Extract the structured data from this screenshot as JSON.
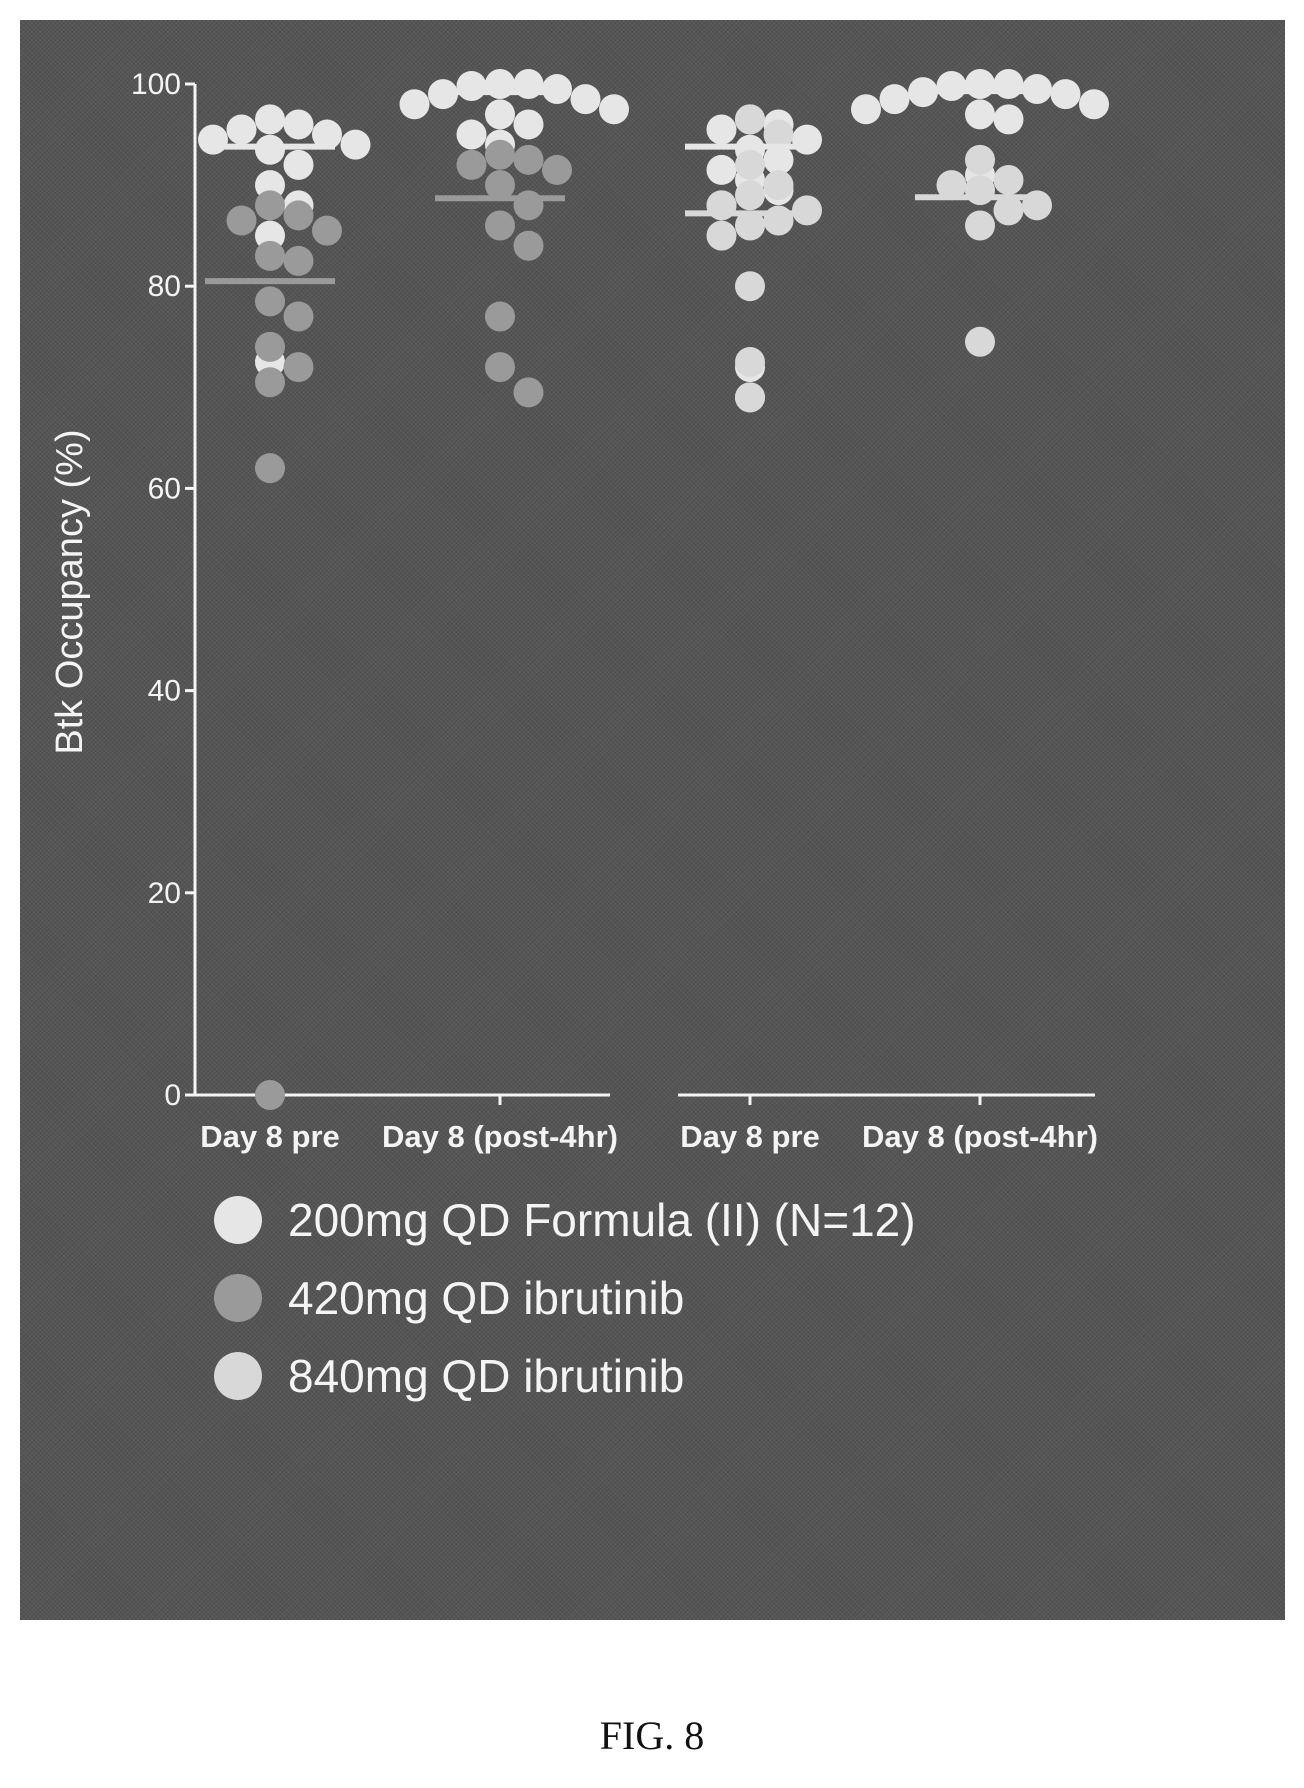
{
  "figure_label": "FIG. 8",
  "chart_data": {
    "type": "scatter",
    "ylabel": "Btk Occupancy (%)",
    "ylim": [
      0,
      100
    ],
    "yticks": [
      0,
      20,
      40,
      60,
      80,
      100
    ],
    "grid": false,
    "legend_position": "bottom",
    "categories": [
      "Day 8 pre",
      "Day 8 (post-4hr)",
      "Day 8 pre",
      "Day 8 (post-4hr)"
    ],
    "series": [
      {
        "name": "200mg QD Formula (II) (N=12)",
        "color": "#e6e6e6",
        "groups": [
          {
            "category_index": 0,
            "values": [
              96.5,
              96,
              95.5,
              95,
              94.5,
              94,
              93.5,
              92,
              90,
              88,
              85,
              72.5
            ],
            "mean": 93.8
          },
          {
            "category_index": 1,
            "values": [
              100,
              100,
              99.8,
              99.5,
              99,
              98.5,
              98,
              97.5,
              97,
              96,
              95,
              94
            ],
            "mean": 99.2
          },
          {
            "category_index": 2,
            "values": [
              96.5,
              96,
              95.5,
              94.5,
              93.5,
              92.5,
              91.5,
              90.5,
              89.5,
              88,
              72,
              69
            ],
            "mean": 93.8
          },
          {
            "category_index": 3,
            "values": [
              100,
              100,
              99.8,
              99.5,
              99.2,
              99,
              98.5,
              98,
              97.5,
              97,
              96.5,
              91
            ],
            "mean": 99.3
          }
        ]
      },
      {
        "name": "420mg QD ibrutinib",
        "color": "#9a9a9a",
        "groups": [
          {
            "category_index": 0,
            "values": [
              88,
              87,
              86.5,
              85.5,
              83,
              82.5,
              78.5,
              77,
              74,
              72,
              70.5,
              62,
              0
            ],
            "mean": 80.5
          },
          {
            "category_index": 1,
            "values": [
              93,
              92.5,
              92,
              91.5,
              90,
              88,
              86,
              84,
              77,
              72,
              69.5
            ],
            "mean": 88.7
          }
        ]
      },
      {
        "name": "840mg QD ibrutinib",
        "color": "#d8d8d8",
        "groups": [
          {
            "category_index": 2,
            "values": [
              96.5,
              95,
              92,
              90,
              89,
              88,
              87.5,
              86.5,
              86,
              85,
              80,
              72.5,
              69
            ],
            "mean": 87.2
          },
          {
            "category_index": 3,
            "values": [
              92.5,
              90.5,
              90,
              89.5,
              88,
              87.5,
              86,
              74.5
            ],
            "mean": 88.8
          }
        ]
      }
    ]
  }
}
